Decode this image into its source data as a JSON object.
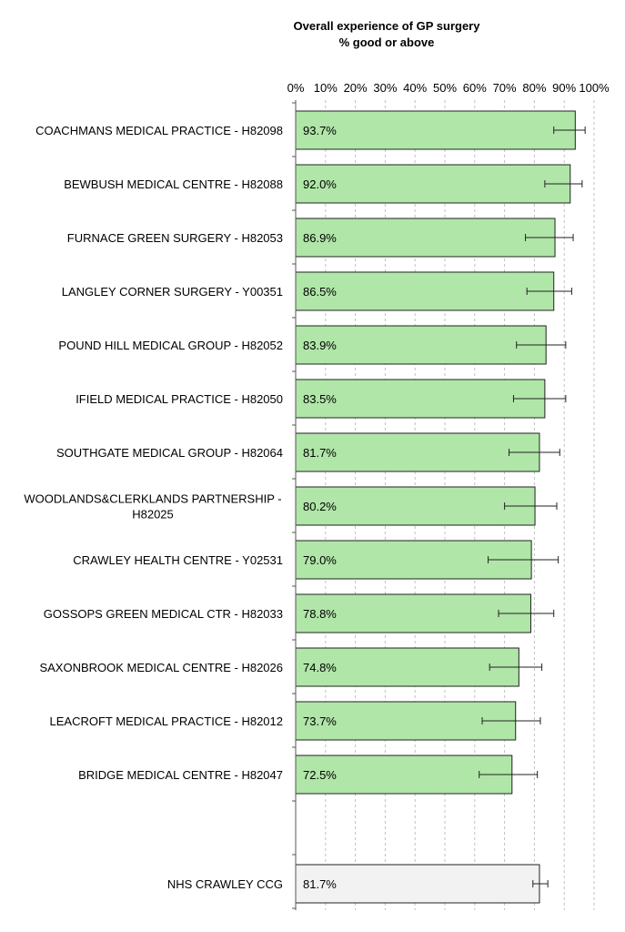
{
  "chart_data": {
    "type": "bar",
    "orientation": "horizontal",
    "title": "Overall experience of GP surgery",
    "subtitle": "% good or above",
    "xlim": [
      0,
      100
    ],
    "x_ticks": [
      "0%",
      "10%",
      "20%",
      "30%",
      "40%",
      "50%",
      "60%",
      "70%",
      "80%",
      "90%",
      "100%"
    ],
    "grid": "vertical dashed",
    "bar_color": "#b0e6a8",
    "summary_bar_color": "#f2f2f2",
    "categories": [
      {
        "label": "COACHMANS MEDICAL PRACTICE - H82098",
        "value": 93.7,
        "value_label": "93.7%",
        "ci": [
          86.5,
          97.0
        ]
      },
      {
        "label": "BEWBUSH MEDICAL CENTRE - H82088",
        "value": 92.0,
        "value_label": "92.0%",
        "ci": [
          83.5,
          96.0
        ]
      },
      {
        "label": "FURNACE GREEN SURGERY - H82053",
        "value": 86.9,
        "value_label": "86.9%",
        "ci": [
          77.0,
          93.0
        ]
      },
      {
        "label": "LANGLEY CORNER SURGERY - Y00351",
        "value": 86.5,
        "value_label": "86.5%",
        "ci": [
          77.5,
          92.5
        ]
      },
      {
        "label": "POUND HILL MEDICAL GROUP - H82052",
        "value": 83.9,
        "value_label": "83.9%",
        "ci": [
          74.0,
          90.5
        ]
      },
      {
        "label": "IFIELD MEDICAL PRACTICE - H82050",
        "value": 83.5,
        "value_label": "83.5%",
        "ci": [
          73.0,
          90.5
        ]
      },
      {
        "label": "SOUTHGATE MEDICAL GROUP - H82064",
        "value": 81.7,
        "value_label": "81.7%",
        "ci": [
          71.5,
          88.5
        ]
      },
      {
        "label": [
          "WOODLANDS&CLERKLANDS PARTNERSHIP -",
          "H82025"
        ],
        "value": 80.2,
        "value_label": "80.2%",
        "ci": [
          70.0,
          87.5
        ]
      },
      {
        "label": "CRAWLEY HEALTH CENTRE - Y02531",
        "value": 79.0,
        "value_label": "79.0%",
        "ci": [
          64.5,
          88.0
        ]
      },
      {
        "label": "GOSSOPS GREEN MEDICAL CTR - H82033",
        "value": 78.8,
        "value_label": "78.8%",
        "ci": [
          68.0,
          86.5
        ]
      },
      {
        "label": "SAXONBROOK MEDICAL CENTRE - H82026",
        "value": 74.8,
        "value_label": "74.8%",
        "ci": [
          65.0,
          82.5
        ]
      },
      {
        "label": "LEACROFT MEDICAL PRACTICE - H82012",
        "value": 73.7,
        "value_label": "73.7%",
        "ci": [
          62.5,
          82.0
        ]
      },
      {
        "label": "BRIDGE MEDICAL CENTRE - H82047",
        "value": 72.5,
        "value_label": "72.5%",
        "ci": [
          61.5,
          81.0
        ]
      }
    ],
    "summary": {
      "label": "NHS CRAWLEY CCG",
      "value": 81.7,
      "value_label": "81.7%",
      "ci": [
        79.5,
        84.5
      ]
    }
  }
}
